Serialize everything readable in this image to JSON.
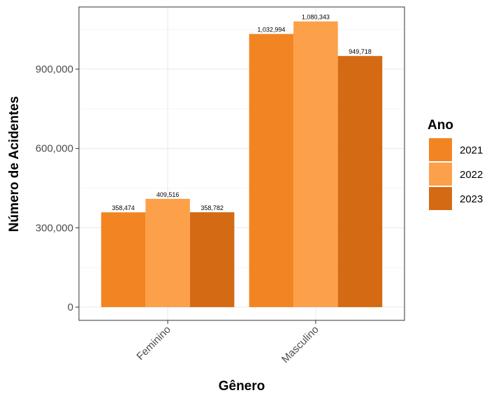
{
  "chart_data": {
    "type": "bar",
    "title": "",
    "xlabel": "Gênero",
    "ylabel": "Número de Acidentes",
    "categories": [
      "Feminino",
      "Masculino"
    ],
    "series": [
      {
        "name": "2021",
        "color": "#F28522",
        "values": [
          358474,
          1032994
        ]
      },
      {
        "name": "2022",
        "color": "#FCA04A",
        "values": [
          409516,
          1080343
        ]
      },
      {
        "name": "2023",
        "color": "#D46A14",
        "values": [
          358782,
          949718
        ]
      }
    ],
    "data_labels": [
      [
        "358,474",
        "1,032,994"
      ],
      [
        "409,516",
        "1,080,343"
      ],
      [
        "358,782",
        "949,718"
      ]
    ],
    "yticks": [
      0,
      300000,
      600000,
      900000
    ],
    "ytick_labels": [
      "0",
      "300,000",
      "600,000",
      "900,000"
    ],
    "ylim": [
      -50000,
      1135000
    ],
    "grid": true,
    "legend": {
      "title": "Ano",
      "position": "right"
    }
  }
}
